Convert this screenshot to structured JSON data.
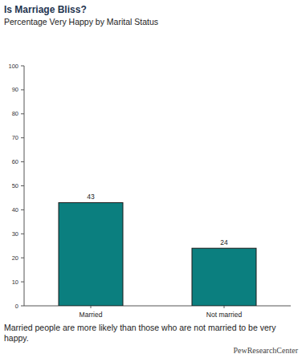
{
  "chart_data": {
    "type": "bar",
    "title": "Is Marriage Bliss?",
    "subtitle": "Percentage Very Happy by Marital Status",
    "categories": [
      "Married",
      "Not married"
    ],
    "values": [
      43,
      24
    ],
    "color": "#0b7f7f",
    "ylim": [
      0,
      100
    ],
    "yticks": [
      0,
      10,
      20,
      30,
      40,
      50,
      60,
      70,
      80,
      90,
      100
    ],
    "grid": false,
    "data_labels": true,
    "annotations": [
      "Married people are more likely than those who are not married to be very happy.",
      "PewResearchCenter"
    ]
  }
}
